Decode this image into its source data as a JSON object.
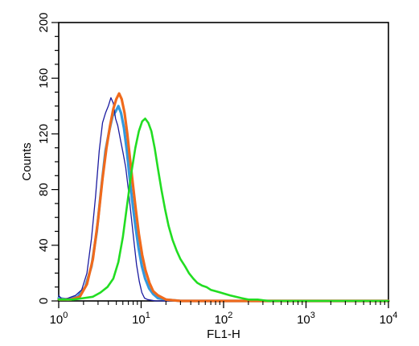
{
  "chart_data": {
    "type": "line",
    "title": "",
    "xlabel": "FL1-H",
    "ylabel": "Counts",
    "x_scale": "log",
    "xlim": [
      1,
      10000
    ],
    "ylim": [
      0,
      200
    ],
    "x_ticks": [
      {
        "value": 1,
        "base": "10",
        "exp": "0"
      },
      {
        "value": 10,
        "base": "10",
        "exp": "1"
      },
      {
        "value": 100,
        "base": "10",
        "exp": "2"
      },
      {
        "value": 1000,
        "base": "10",
        "exp": "3"
      },
      {
        "value": 10000,
        "base": "10",
        "exp": "4"
      }
    ],
    "y_ticks": [
      "0",
      "40",
      "80",
      "120",
      "160",
      "200"
    ],
    "grid": false,
    "legend": "none",
    "series": [
      {
        "color": "#1a1aa0",
        "points": [
          [
            1,
            4
          ],
          [
            1.1,
            1
          ],
          [
            1.3,
            2
          ],
          [
            1.6,
            4
          ],
          [
            1.9,
            8
          ],
          [
            2.2,
            20
          ],
          [
            2.5,
            45
          ],
          [
            2.8,
            75
          ],
          [
            3.1,
            108
          ],
          [
            3.4,
            128
          ],
          [
            3.7,
            135
          ],
          [
            4.0,
            140
          ],
          [
            4.3,
            146
          ],
          [
            4.6,
            142
          ],
          [
            4.9,
            131
          ],
          [
            5.2,
            126
          ],
          [
            5.6,
            116
          ],
          [
            6.0,
            107
          ],
          [
            6.5,
            96
          ],
          [
            7.0,
            80
          ],
          [
            7.6,
            60
          ],
          [
            8.2,
            42
          ],
          [
            8.8,
            26
          ],
          [
            9.5,
            14
          ],
          [
            10.2,
            6
          ],
          [
            11,
            2
          ],
          [
            12,
            1
          ],
          [
            15,
            0
          ],
          [
            10000,
            0
          ]
        ]
      },
      {
        "color": "#3399dd",
        "points": [
          [
            1,
            2
          ],
          [
            1.3,
            1
          ],
          [
            1.7,
            3
          ],
          [
            2.1,
            10
          ],
          [
            2.5,
            25
          ],
          [
            2.9,
            50
          ],
          [
            3.3,
            82
          ],
          [
            3.7,
            108
          ],
          [
            4.1,
            122
          ],
          [
            4.5,
            133
          ],
          [
            4.9,
            136
          ],
          [
            5.3,
            140
          ],
          [
            5.7,
            135
          ],
          [
            6.2,
            124
          ],
          [
            6.7,
            108
          ],
          [
            7.2,
            90
          ],
          [
            7.8,
            72
          ],
          [
            8.5,
            54
          ],
          [
            9.3,
            38
          ],
          [
            10.2,
            25
          ],
          [
            11.2,
            16
          ],
          [
            12.5,
            9
          ],
          [
            14,
            5
          ],
          [
            16,
            2
          ],
          [
            20,
            1
          ],
          [
            30,
            0
          ],
          [
            10000,
            0
          ]
        ]
      },
      {
        "color": "#f06a1c",
        "points": [
          [
            1,
            1
          ],
          [
            1.4,
            1
          ],
          [
            1.8,
            3
          ],
          [
            2.2,
            12
          ],
          [
            2.6,
            30
          ],
          [
            3.0,
            58
          ],
          [
            3.4,
            88
          ],
          [
            3.8,
            110
          ],
          [
            4.2,
            126
          ],
          [
            4.6,
            138
          ],
          [
            5.0,
            145
          ],
          [
            5.4,
            149
          ],
          [
            5.8,
            145
          ],
          [
            6.3,
            135
          ],
          [
            6.8,
            120
          ],
          [
            7.3,
            103
          ],
          [
            7.9,
            85
          ],
          [
            8.6,
            66
          ],
          [
            9.4,
            48
          ],
          [
            10.3,
            33
          ],
          [
            11.3,
            22
          ],
          [
            12.6,
            13
          ],
          [
            14,
            7
          ],
          [
            16,
            4
          ],
          [
            20,
            1
          ],
          [
            30,
            0
          ],
          [
            10000,
            0
          ]
        ]
      },
      {
        "color": "#22dd22",
        "points": [
          [
            1,
            1
          ],
          [
            1.5,
            1
          ],
          [
            2,
            2
          ],
          [
            2.6,
            3
          ],
          [
            3.2,
            6
          ],
          [
            3.9,
            10
          ],
          [
            4.6,
            16
          ],
          [
            5.3,
            28
          ],
          [
            6.0,
            46
          ],
          [
            6.8,
            70
          ],
          [
            7.6,
            92
          ],
          [
            8.5,
            110
          ],
          [
            9.4,
            122
          ],
          [
            10.3,
            129
          ],
          [
            11.2,
            131
          ],
          [
            12.2,
            128
          ],
          [
            13.3,
            122
          ],
          [
            14.6,
            110
          ],
          [
            16,
            95
          ],
          [
            17.6,
            80
          ],
          [
            19.5,
            66
          ],
          [
            21.5,
            54
          ],
          [
            24,
            44
          ],
          [
            27,
            36
          ],
          [
            30,
            30
          ],
          [
            34,
            25
          ],
          [
            38,
            20
          ],
          [
            43,
            16
          ],
          [
            48,
            13
          ],
          [
            55,
            11
          ],
          [
            62,
            10
          ],
          [
            70,
            8
          ],
          [
            80,
            7
          ],
          [
            92,
            6
          ],
          [
            105,
            5
          ],
          [
            120,
            4
          ],
          [
            140,
            3
          ],
          [
            165,
            2
          ],
          [
            200,
            1
          ],
          [
            260,
            1
          ],
          [
            350,
            0
          ],
          [
            10000,
            0
          ]
        ]
      }
    ]
  }
}
